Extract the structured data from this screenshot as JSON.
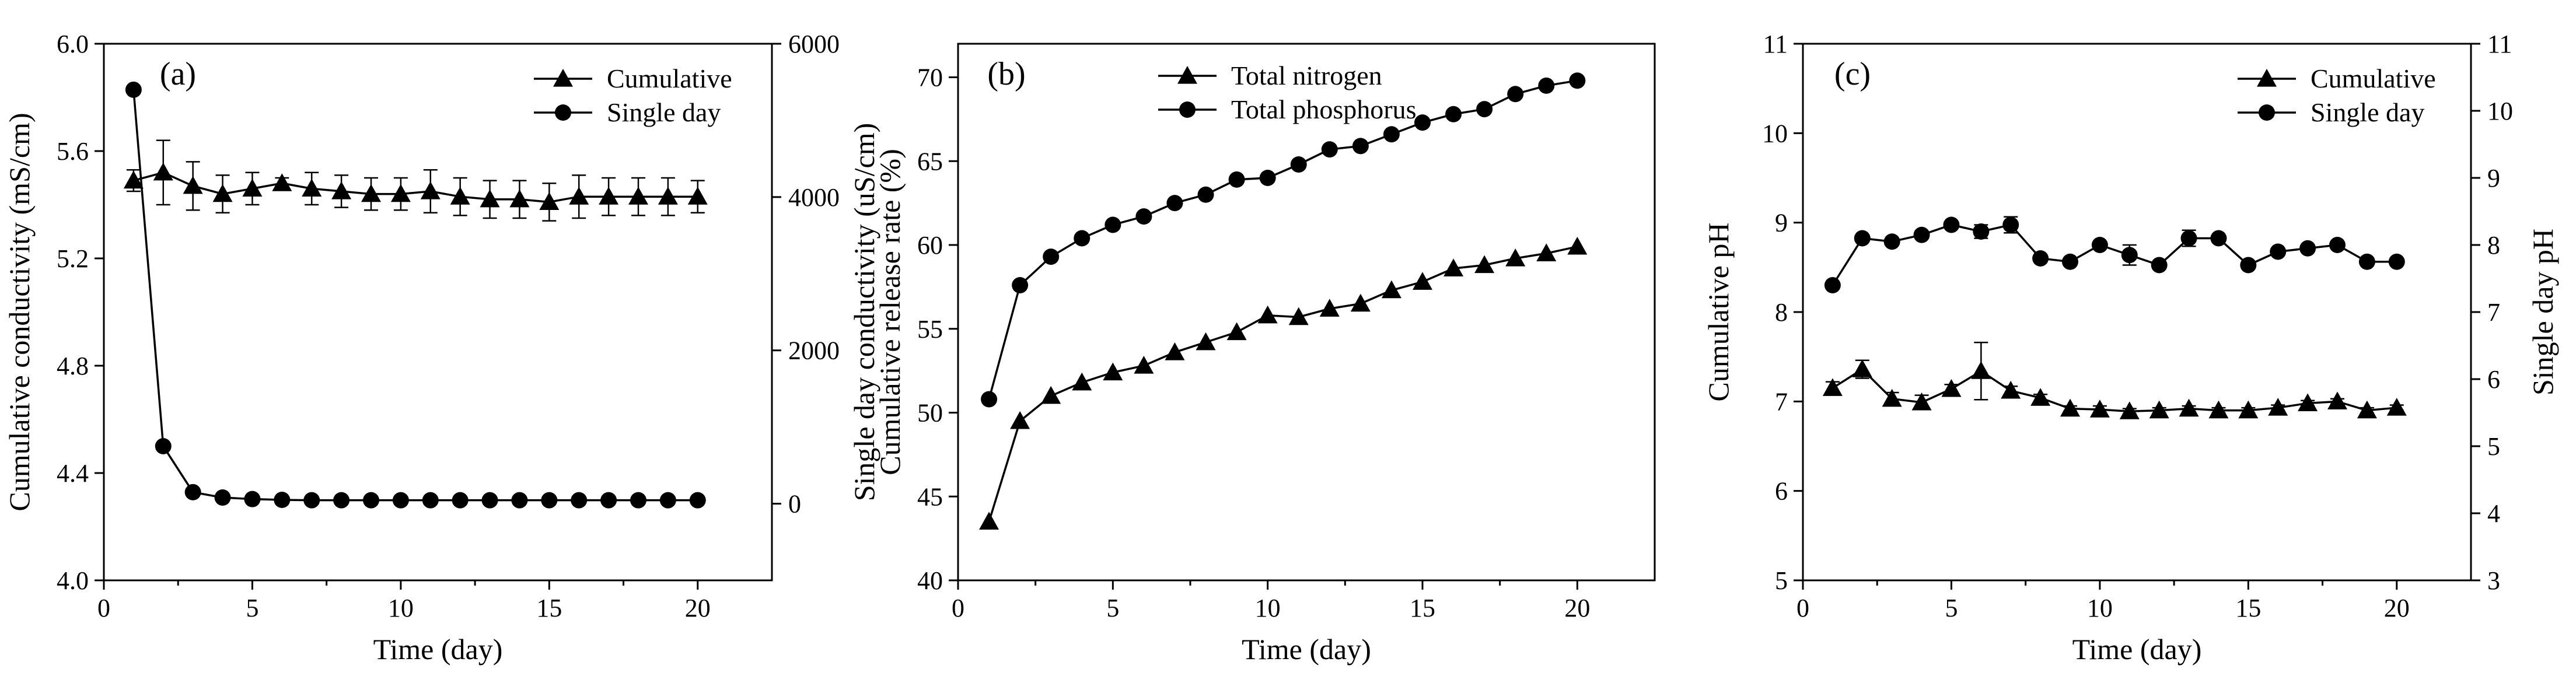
{
  "chart_data": [
    {
      "type": "line",
      "panel_label": "(a)",
      "xlabel": "Time (day)",
      "ylabel": "Cumulative conductivity (mS/cm)",
      "y2label": "Single day conductivity (uS/cm)",
      "xlim": [
        0,
        22.5
      ],
      "ylim": [
        4.0,
        6.0
      ],
      "y2lim": [
        -1000,
        6000
      ],
      "xticks": [
        0,
        5,
        10,
        15,
        20
      ],
      "yticks": [
        4.0,
        4.4,
        4.8,
        5.2,
        5.6,
        6.0
      ],
      "ytick_labels": [
        "4.0",
        "4.4",
        "4.8",
        "5.2",
        "5.6",
        "6.0"
      ],
      "y2ticks": [
        0,
        2000,
        4000,
        6000
      ],
      "y2tick_labels": [
        "0",
        "2000",
        "4000",
        "6000"
      ],
      "legend_position": "top-right",
      "series": [
        {
          "name": "Cumulative",
          "marker": "triangle",
          "axis": "left",
          "x": [
            1,
            2,
            3,
            4,
            5,
            6,
            7,
            8,
            9,
            10,
            11,
            12,
            13,
            14,
            15,
            16,
            17,
            18,
            19,
            20
          ],
          "values": [
            5.49,
            5.52,
            5.47,
            5.44,
            5.46,
            5.48,
            5.46,
            5.45,
            5.44,
            5.44,
            5.45,
            5.43,
            5.42,
            5.42,
            5.41,
            5.43,
            5.43,
            5.43,
            5.43,
            5.43
          ],
          "errors": [
            0.04,
            0.12,
            0.09,
            0.07,
            0.06,
            0.02,
            0.06,
            0.06,
            0.06,
            0.06,
            0.08,
            0.07,
            0.07,
            0.07,
            0.07,
            0.08,
            0.07,
            0.07,
            0.07,
            0.06
          ]
        },
        {
          "name": "Single day",
          "marker": "circle",
          "axis": "right",
          "x": [
            1,
            2,
            3,
            4,
            5,
            6,
            7,
            8,
            9,
            10,
            11,
            12,
            13,
            14,
            15,
            16,
            17,
            18,
            19,
            20
          ],
          "values": [
            5400,
            750,
            150,
            80,
            60,
            50,
            45,
            45,
            45,
            45,
            45,
            45,
            45,
            45,
            45,
            45,
            45,
            45,
            45,
            45
          ],
          "errors": []
        }
      ]
    },
    {
      "type": "line",
      "panel_label": "(b)",
      "xlabel": "Time (day)",
      "ylabel": "Cumulative release rate (%)",
      "xlim": [
        0,
        22.5
      ],
      "ylim": [
        40,
        72
      ],
      "xticks": [
        0,
        5,
        10,
        15,
        20
      ],
      "yticks": [
        40,
        45,
        50,
        55,
        60,
        65,
        70
      ],
      "ytick_labels": [
        "40",
        "45",
        "50",
        "55",
        "60",
        "65",
        "70"
      ],
      "legend_position": "top-left",
      "series": [
        {
          "name": "Total nitrogen",
          "marker": "triangle",
          "axis": "left",
          "x": [
            1,
            2,
            3,
            4,
            5,
            6,
            7,
            8,
            9,
            10,
            11,
            12,
            13,
            14,
            15,
            16,
            17,
            18,
            19,
            20
          ],
          "values": [
            43.5,
            49.5,
            51.0,
            51.8,
            52.4,
            52.8,
            53.6,
            54.2,
            54.8,
            55.8,
            55.7,
            56.2,
            56.5,
            57.3,
            57.8,
            58.6,
            58.8,
            59.2,
            59.5,
            59.9
          ],
          "errors": []
        },
        {
          "name": "Total phosphorus",
          "marker": "circle",
          "axis": "left",
          "x": [
            1,
            2,
            3,
            4,
            5,
            6,
            7,
            8,
            9,
            10,
            11,
            12,
            13,
            14,
            15,
            16,
            17,
            18,
            19,
            20
          ],
          "values": [
            50.8,
            57.6,
            59.3,
            60.4,
            61.2,
            61.7,
            62.5,
            63.0,
            63.9,
            64.0,
            64.8,
            65.7,
            65.9,
            66.6,
            67.3,
            67.8,
            68.1,
            69.0,
            69.5,
            69.8
          ],
          "errors": []
        }
      ]
    },
    {
      "type": "line",
      "panel_label": "(c)",
      "xlabel": "Time (day)",
      "ylabel": "Cumulative pH",
      "y2label": "Single day pH",
      "xlim": [
        0,
        22.5
      ],
      "ylim": [
        5,
        11
      ],
      "y2lim": [
        3,
        11
      ],
      "xticks": [
        0,
        5,
        10,
        15,
        20
      ],
      "yticks": [
        5,
        6,
        7,
        8,
        9,
        10,
        11
      ],
      "ytick_labels": [
        "5",
        "6",
        "7",
        "8",
        "9",
        "10",
        "11"
      ],
      "y2ticks": [
        3,
        4,
        5,
        6,
        7,
        8,
        9,
        10,
        11
      ],
      "y2tick_labels": [
        "3",
        "4",
        "5",
        "6",
        "7",
        "8",
        "9",
        "10",
        "11"
      ],
      "legend_position": "top-right",
      "series": [
        {
          "name": "Cumulative",
          "marker": "triangle",
          "axis": "left",
          "x": [
            1,
            2,
            3,
            4,
            5,
            6,
            7,
            8,
            9,
            10,
            11,
            12,
            13,
            14,
            15,
            16,
            17,
            18,
            19,
            20
          ],
          "values": [
            7.15,
            7.36,
            7.03,
            6.99,
            7.14,
            7.34,
            7.12,
            7.04,
            6.92,
            6.91,
            6.89,
            6.9,
            6.92,
            6.9,
            6.9,
            6.93,
            6.98,
            7.0,
            6.9,
            6.93
          ],
          "errors": [
            0.07,
            0.1,
            0.07,
            0.08,
            0.05,
            0.32,
            0.05,
            0.04,
            0.03,
            0.04,
            0.03,
            0.03,
            0.03,
            0.03,
            0.03,
            0.03,
            0.03,
            0.03,
            0.03,
            0.03
          ]
        },
        {
          "name": "Single day",
          "marker": "circle",
          "axis": "right",
          "x": [
            1,
            2,
            3,
            4,
            5,
            6,
            7,
            8,
            9,
            10,
            11,
            12,
            13,
            14,
            15,
            16,
            17,
            18,
            19,
            20
          ],
          "values": [
            7.4,
            8.1,
            8.05,
            8.15,
            8.3,
            8.2,
            8.3,
            7.8,
            7.75,
            8.0,
            7.85,
            7.7,
            8.1,
            8.1,
            7.7,
            7.9,
            7.95,
            8.0,
            7.75,
            7.75
          ],
          "errors": [
            0,
            0,
            0,
            0,
            0,
            0.1,
            0.12,
            0,
            0,
            0,
            0.15,
            0,
            0.12,
            0,
            0,
            0,
            0,
            0,
            0,
            0
          ]
        }
      ]
    }
  ]
}
